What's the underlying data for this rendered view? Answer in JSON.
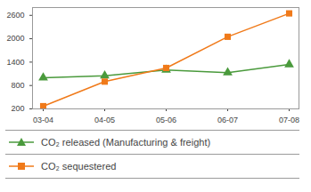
{
  "chart_data": {
    "type": "line",
    "x": [
      "03-04",
      "04-05",
      "05-06",
      "06-07",
      "07-08"
    ],
    "series": [
      {
        "name": "CO₂ released (Manufacturing & freight)",
        "color": "#4a9a3c",
        "marker": "triangle",
        "values": [
          1000,
          1050,
          1200,
          1130,
          1340
        ]
      },
      {
        "name": "CO₂ sequestered",
        "color": "#f07a1a",
        "marker": "square",
        "values": [
          270,
          900,
          1250,
          2050,
          2650
        ]
      }
    ],
    "ylim": [
      200,
      2800
    ],
    "yticks": [
      200,
      800,
      1400,
      2000,
      2600
    ],
    "grid": false,
    "legend": "bottom"
  }
}
